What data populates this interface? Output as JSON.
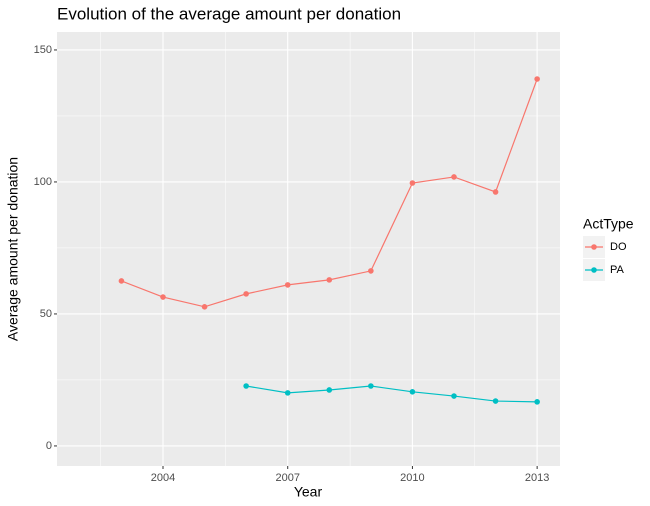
{
  "chart_data": {
    "type": "line",
    "title": "Evolution of the average amount per donation",
    "x_label": "Year",
    "y_label": "Average amount per donation",
    "x": [
      2003,
      2004,
      2005,
      2006,
      2007,
      2008,
      2009,
      2010,
      2011,
      2012,
      2013
    ],
    "series": [
      {
        "name": "DO",
        "color": "#F8766D",
        "values": [
          62.5,
          56.4,
          52.7,
          57.6,
          61,
          62.9,
          66.3,
          99.6,
          101.9,
          96.2,
          139
        ]
      },
      {
        "name": "PA",
        "color": "#00BFC4",
        "values": [
          null,
          null,
          null,
          22.7,
          20.1,
          21.2,
          22.7,
          20.5,
          18.9,
          17,
          16.7
        ]
      }
    ],
    "legend_title": "ActType",
    "legend": "right",
    "xlim": [
      2001.45,
      2013.55
    ],
    "xticks": [
      2004,
      2007,
      2010,
      2013
    ],
    "ylim": [
      -7.6,
      156.8
    ],
    "yticks": [
      0,
      50,
      100,
      150
    ],
    "grid": true
  }
}
